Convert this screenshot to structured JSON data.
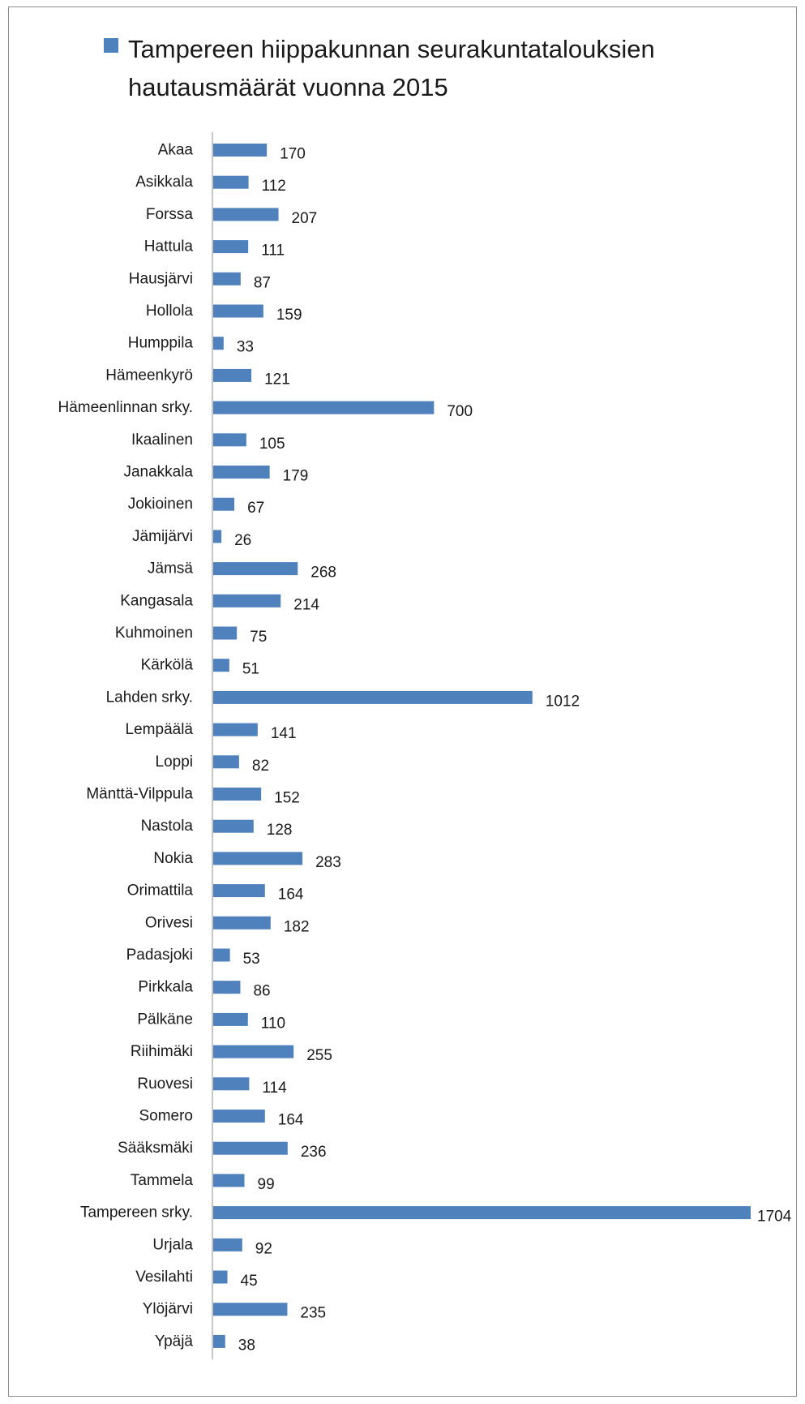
{
  "colors": {
    "bar": "#4f81bd",
    "axis": "#8c8c8c",
    "text": "#1a1a1a"
  },
  "chart_data": {
    "type": "bar",
    "orientation": "horizontal",
    "legend_position": "top",
    "grid": false,
    "series": [
      {
        "name": "Tampereen hiippakunnan seurakuntatalouksien hautausmäärät vuonna 2015"
      }
    ],
    "categories": [
      "Akaa",
      "Asikkala",
      "Forssa",
      "Hattula",
      "Hausjärvi",
      "Hollola",
      "Humppila",
      "Hämeenkyrö",
      "Hämeenlinnan srky.",
      "Ikaalinen",
      "Janakkala",
      "Jokioinen",
      "Jämijärvi",
      "Jämsä",
      "Kangasala",
      "Kuhmoinen",
      "Kärkölä",
      "Lahden srky.",
      "Lempäälä",
      "Loppi",
      "Mänttä-Vilppula",
      "Nastola",
      "Nokia",
      "Orimattila",
      "Orivesi",
      "Padasjoki",
      "Pirkkala",
      "Pälkäne",
      "Riihimäki",
      "Ruovesi",
      "Somero",
      "Sääksmäki",
      "Tammela",
      "Tampereen srky.",
      "Urjala",
      "Vesilahti",
      "Ylöjärvi",
      "Ypäjä"
    ],
    "values": [
      170,
      112,
      207,
      111,
      87,
      159,
      33,
      121,
      700,
      105,
      179,
      67,
      26,
      268,
      214,
      75,
      51,
      1012,
      141,
      82,
      152,
      128,
      283,
      164,
      182,
      53,
      86,
      110,
      255,
      114,
      164,
      236,
      99,
      1704,
      92,
      45,
      235,
      38
    ],
    "xlim": [
      0,
      1704
    ]
  }
}
